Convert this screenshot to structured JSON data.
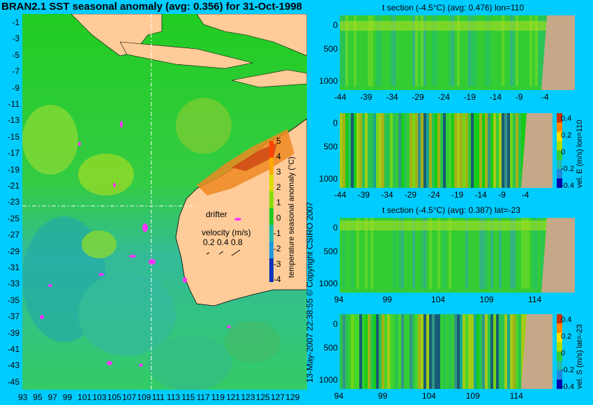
{
  "main_title": "BRAN2.1 SST seasonal anomaly (avg: 0.356) for 31-Oct-1998",
  "copyright": "13-May-2007 22:38:55    © Copyright CSIRO 2007",
  "map": {
    "y_ticks": [
      "-1",
      "-3",
      "-5",
      "-7",
      "-9",
      "-11",
      "-13",
      "-15",
      "-17",
      "-19",
      "-21",
      "-23",
      "-25",
      "-27",
      "-29",
      "-31",
      "-33",
      "-35",
      "-37",
      "-39",
      "-41",
      "-43",
      "-45"
    ],
    "x_ticks": [
      "93",
      "95",
      "97",
      "99",
      "101",
      "103",
      "105",
      "107",
      "109",
      "111",
      "113",
      "115",
      "117",
      "119",
      "121",
      "123",
      "125",
      "127",
      "129"
    ],
    "colorbar_label": "temperature seasonal anomaly (°C)",
    "colorbar_ticks": [
      "5",
      "4",
      "3",
      "2",
      "1",
      "0",
      "-1",
      "-2",
      "-3",
      "-4"
    ],
    "drifter_label": "drifter",
    "velocity_label": "velocity (m/s)",
    "velocity_values": "0.2  0.4  0.8",
    "colors": {
      "land": "#ffcc99",
      "ocean_mid": "#22cc22",
      "ocean_cool": "#33bbaa",
      "warm": "#ee8800"
    }
  },
  "panels": [
    {
      "title": "t section (-4.5°C) (avg: 0.476) lon=110",
      "y_ticks": [
        "0",
        "500",
        "1000"
      ],
      "x_ticks": [
        "-44",
        "-39",
        "-34",
        "-29",
        "-24",
        "-19",
        "-14",
        "-9",
        "-4"
      ],
      "colorbar": false
    },
    {
      "title": "",
      "y_ticks": [
        "0",
        "500",
        "1000"
      ],
      "x_ticks": [
        "-44",
        "-39",
        "-34",
        "-29",
        "-24",
        "-19",
        "-14",
        "-9",
        "-4"
      ],
      "colorbar": true,
      "colorbar_label": "vel. E (m/s) lon=110",
      "colorbar_ticks": [
        "0.4",
        "0.2",
        "0",
        "-0.2",
        "-0.4"
      ]
    },
    {
      "title": "t section (-4.5°C) (avg: 0.387) lat=-23",
      "y_ticks": [
        "0",
        "500",
        "1000"
      ],
      "x_ticks": [
        "94",
        "99",
        "104",
        "109",
        "114"
      ],
      "colorbar": false
    },
    {
      "title": "",
      "y_ticks": [
        "0",
        "500",
        "1000"
      ],
      "x_ticks": [
        "94",
        "99",
        "104",
        "109",
        "114"
      ],
      "colorbar": true,
      "colorbar_label": "vel. S (m/s) lat=-23",
      "colorbar_ticks": [
        "0.4",
        "0.2",
        "0",
        "-0.2",
        "-0.4"
      ]
    }
  ],
  "chart_data": [
    {
      "type": "heatmap",
      "title": "BRAN2.1 SST seasonal anomaly (avg: 0.356) for 31-Oct-1998",
      "xlim": [
        93,
        130
      ],
      "ylim": [
        -45,
        0
      ],
      "colorbar_range": [
        -4,
        5
      ],
      "colorbar_label": "temperature seasonal anomaly (°C)",
      "crosshair": {
        "lon": 110,
        "lat": -23
      }
    },
    {
      "type": "heatmap",
      "title": "t section (-4.5°C) (avg: 0.476) lon=110",
      "xlim": [
        -45,
        -2
      ],
      "ylim": [
        1050,
        0
      ]
    },
    {
      "type": "heatmap",
      "title": "",
      "xlim": [
        -45,
        -2
      ],
      "ylim": [
        1050,
        0
      ],
      "colorbar_label": "vel. E (m/s) lon=110",
      "colorbar_range": [
        -0.4,
        0.45
      ]
    },
    {
      "type": "heatmap",
      "title": "t section (-4.5°C) (avg: 0.387) lat=-23",
      "xlim": [
        92,
        116
      ],
      "ylim": [
        1050,
        0
      ]
    },
    {
      "type": "heatmap",
      "title": "",
      "xlim": [
        92,
        116
      ],
      "ylim": [
        1050,
        0
      ],
      "colorbar_label": "vel. S (m/s) lat=-23",
      "colorbar_range": [
        -0.4,
        0.45
      ]
    }
  ]
}
